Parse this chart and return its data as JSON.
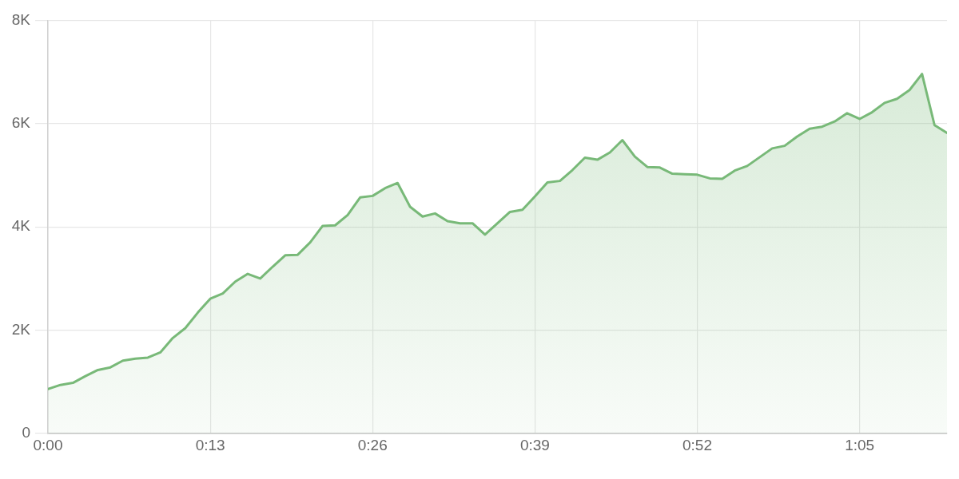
{
  "chart_data": {
    "type": "area",
    "x": [
      0,
      1,
      2,
      3,
      4,
      5,
      6,
      7,
      8,
      9,
      10,
      11,
      12,
      13,
      14,
      15,
      16,
      17,
      18,
      19,
      20,
      21,
      22,
      23,
      24,
      25,
      26,
      27,
      28,
      29,
      30,
      31,
      32,
      33,
      34,
      35,
      36,
      37,
      38,
      39,
      40,
      41,
      42,
      43,
      44,
      45,
      46,
      47,
      48,
      49,
      50,
      51,
      52,
      53,
      54,
      55,
      56,
      57,
      58,
      59,
      60,
      61,
      62,
      63,
      64,
      65,
      66,
      67,
      68,
      69,
      70,
      71,
      72
    ],
    "values": [
      860,
      940,
      980,
      1110,
      1230,
      1280,
      1410,
      1450,
      1470,
      1570,
      1850,
      2040,
      2340,
      2610,
      2710,
      2940,
      3090,
      3000,
      3230,
      3450,
      3460,
      3700,
      4020,
      4030,
      4230,
      4570,
      4600,
      4750,
      4850,
      4390,
      4200,
      4260,
      4110,
      4070,
      4070,
      3850,
      4070,
      4290,
      4330,
      4590,
      4860,
      4890,
      5100,
      5340,
      5300,
      5440,
      5680,
      5360,
      5160,
      5150,
      5030,
      5020,
      5010,
      4940,
      4930,
      5090,
      5180,
      5350,
      5520,
      5570,
      5750,
      5900,
      5940,
      6040,
      6200,
      6090,
      6220,
      6400,
      6480,
      6650,
      6960,
      5970,
      5820
    ],
    "color": "#78b978",
    "xlim": [
      0,
      72
    ],
    "xticks": [
      {
        "value": 0,
        "label": "0:00"
      },
      {
        "value": 13,
        "label": "0:13"
      },
      {
        "value": 26,
        "label": "0:26"
      },
      {
        "value": 39,
        "label": "0:39"
      },
      {
        "value": 52,
        "label": "0:52"
      },
      {
        "value": 65,
        "label": "1:05"
      }
    ],
    "ylim": [
      0,
      8000
    ],
    "yticks": [
      0,
      {
        "value": 2000,
        "label": "2K"
      },
      {
        "value": 4000,
        "label": "4K"
      },
      {
        "value": 6000,
        "label": "6K"
      },
      {
        "value": 8000,
        "label": "8K"
      }
    ],
    "grid": true
  }
}
